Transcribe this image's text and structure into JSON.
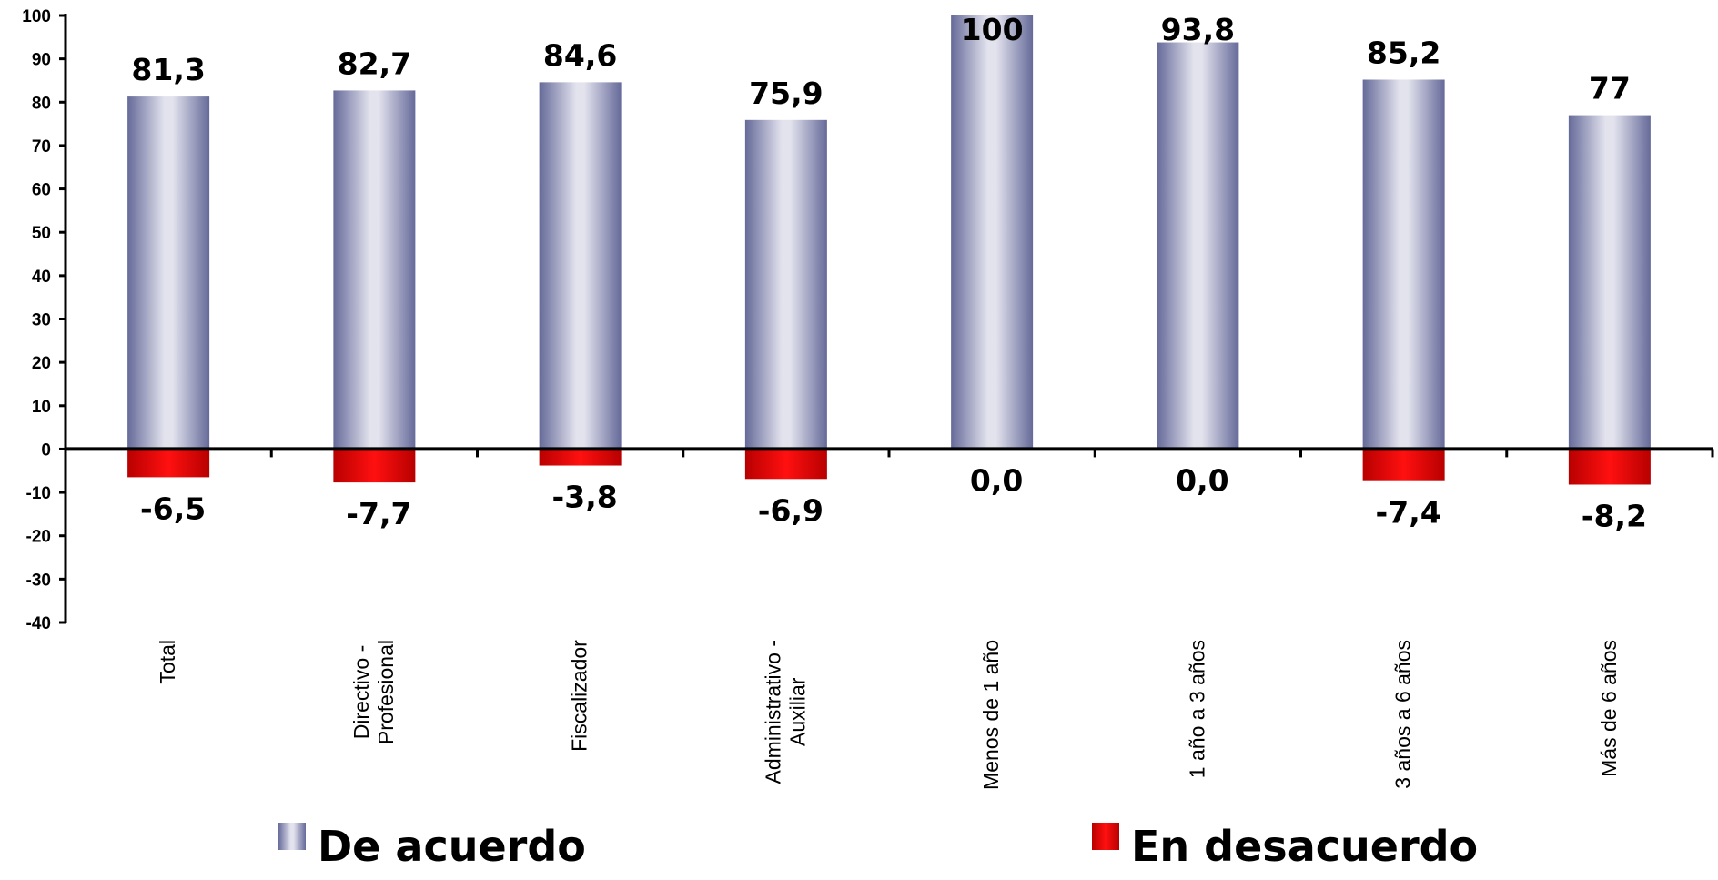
{
  "chart_data": {
    "type": "bar",
    "categories": [
      [
        "Total"
      ],
      [
        "Directivo -",
        "Profesional"
      ],
      [
        "Fiscalizador"
      ],
      [
        "Administrativo -",
        "Auxiliar"
      ],
      [
        "Menos de 1 año"
      ],
      [
        "1 año a 3 años"
      ],
      [
        "3 años a 6 años"
      ],
      [
        "Más de 6 años"
      ]
    ],
    "series": [
      {
        "name": "De acuerdo",
        "values": [
          81.3,
          82.7,
          84.6,
          75.9,
          100,
          93.8,
          85.2,
          77
        ],
        "labels": [
          "81,3",
          "82,7",
          "84,6",
          "75,9",
          "100",
          "93,8",
          "85,2",
          "77"
        ],
        "color": "#6b6f9c"
      },
      {
        "name": "En desacuerdo",
        "values": [
          -6.5,
          -7.7,
          -3.8,
          -6.9,
          0.0,
          0.0,
          -7.4,
          -8.2
        ],
        "labels": [
          "-6,5",
          "-7,7",
          "-3,8",
          "-6,9",
          "0,0",
          "0,0",
          "-7,4",
          "-8,2"
        ],
        "color": "#ff0000"
      }
    ],
    "ylim": [
      -40,
      100
    ],
    "yticks": [
      -40,
      -30,
      -20,
      -10,
      0,
      10,
      20,
      30,
      40,
      50,
      60,
      70,
      80,
      90,
      100
    ],
    "ytick_labels": [
      "-40",
      "-30",
      "-20",
      "-10",
      "0",
      "10",
      "20",
      "30",
      "40",
      "50",
      "60",
      "70",
      "80",
      "90",
      "100"
    ],
    "grid": false,
    "legend": "bottom",
    "title": "",
    "xlabel": "",
    "ylabel": ""
  }
}
